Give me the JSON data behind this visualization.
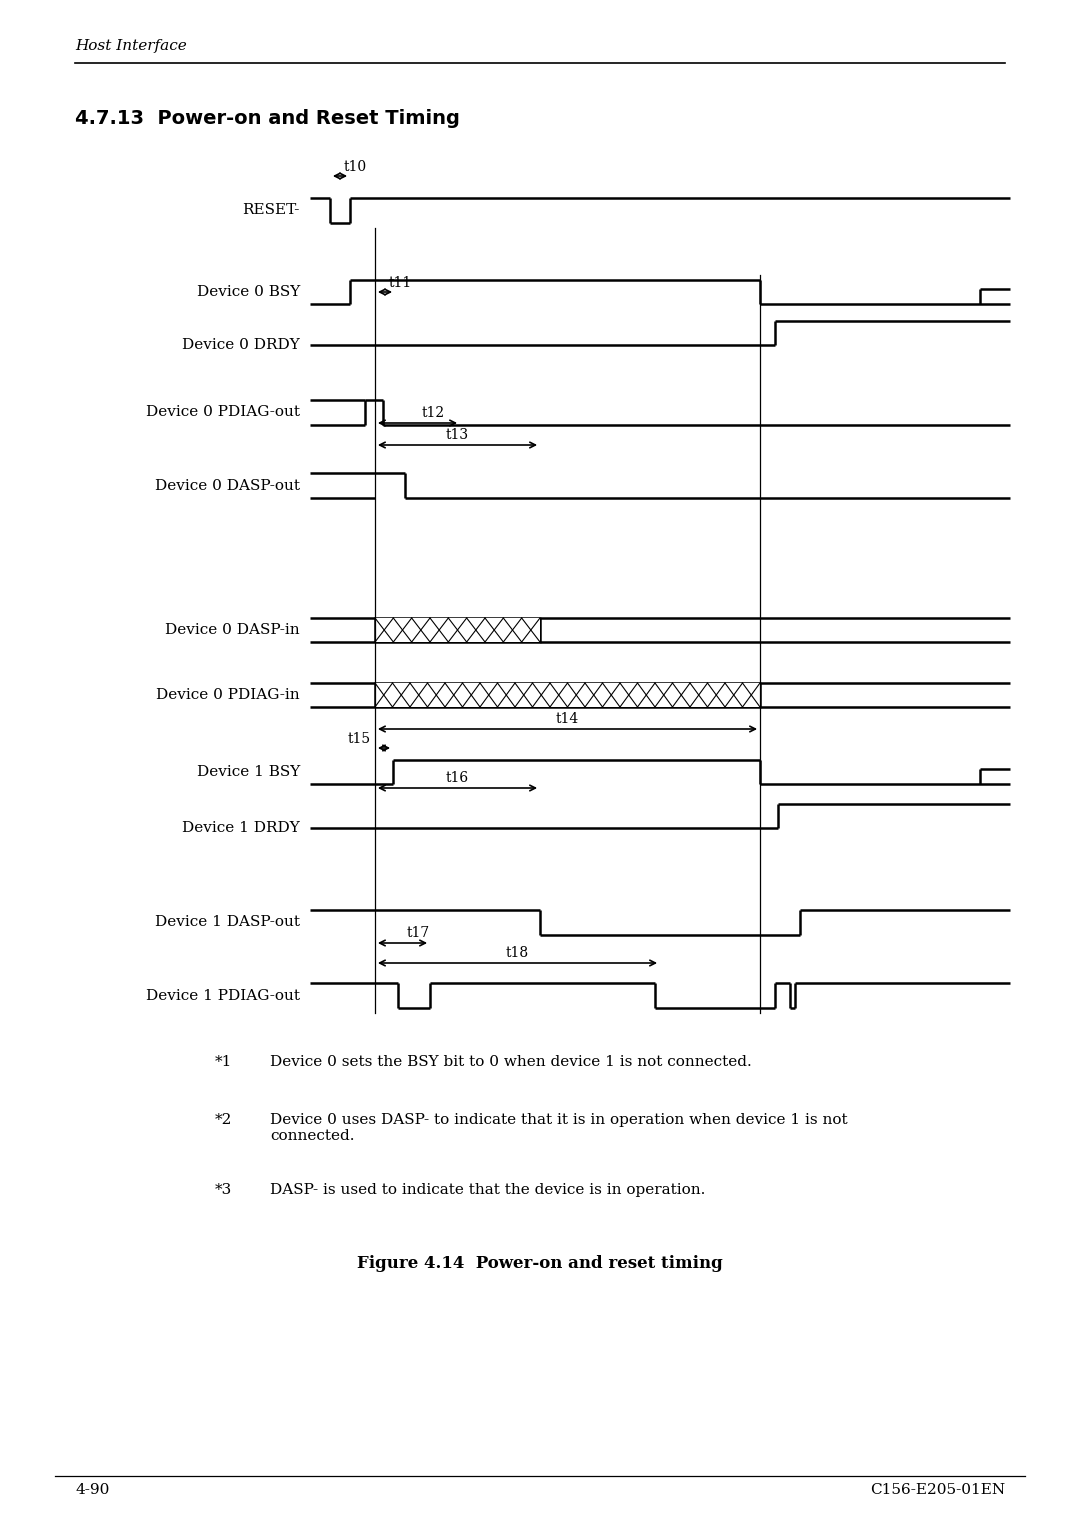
{
  "title_section": "4.7.13  Power-on and Reset Timing",
  "header_text": "Host Interface",
  "figure_caption": "Figure 4.14  Power-on and reset timing",
  "footer_left": "4-90",
  "footer_right": "C156-E205-01EN",
  "bg_color": "#ffffff",
  "line_color": "#000000",
  "note1_star": "*1",
  "note1_text": "Device 0 sets the BSY bit to 0 when device 1 is not connected.",
  "note2_star": "*2",
  "note2_text": "Device 0 uses DASP- to indicate that it is in operation when device 1 is not\nconnected.",
  "note3_star": "*3",
  "note3_text": "DASP- is used to indicate that the device is in operation."
}
